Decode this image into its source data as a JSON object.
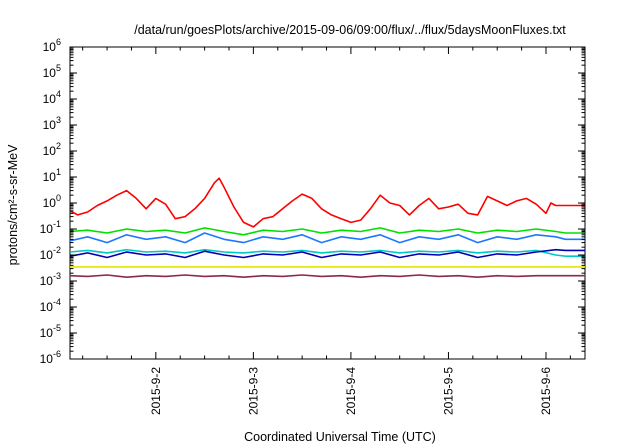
{
  "chart_data": {
    "type": "line",
    "title": "/data/run/goesPlots/archive/2015-09-06/09:00/flux/../flux/5daysMoonFluxes.txt",
    "xlabel": "Coordinated Universal Time (UTC)",
    "ylabel": "protons/cm²-s-sr-MeV",
    "yscale": "log",
    "ylim": [
      1e-06,
      1000000.0
    ],
    "xlim": [
      1.12,
      6.4
    ],
    "y_ticks": [
      {
        "value": -6,
        "label": "10",
        "exp": "-6"
      },
      {
        "value": -5,
        "label": "10",
        "exp": "-5"
      },
      {
        "value": -4,
        "label": "10",
        "exp": "-4"
      },
      {
        "value": -3,
        "label": "10",
        "exp": "-3"
      },
      {
        "value": -2,
        "label": "10",
        "exp": "-2"
      },
      {
        "value": -1,
        "label": "10",
        "exp": "-1"
      },
      {
        "value": 0,
        "label": "10",
        "exp": "0"
      },
      {
        "value": 1,
        "label": "10",
        "exp": "1"
      },
      {
        "value": 2,
        "label": "10",
        "exp": "2"
      },
      {
        "value": 3,
        "label": "10",
        "exp": "3"
      },
      {
        "value": 4,
        "label": "10",
        "exp": "4"
      },
      {
        "value": 5,
        "label": "10",
        "exp": "5"
      },
      {
        "value": 6,
        "label": "10",
        "exp": "6"
      }
    ],
    "x_ticks": [
      {
        "value": 2,
        "label": "2015-9-2"
      },
      {
        "value": 3,
        "label": "2015-9-3"
      },
      {
        "value": 4,
        "label": "2015-9-4"
      },
      {
        "value": 5,
        "label": "2015-9-5"
      },
      {
        "value": 6,
        "label": "2015-9-6"
      }
    ],
    "grid": false,
    "legend": "none",
    "series": [
      {
        "color": "#ff0000",
        "x": [
          1.12,
          1.2,
          1.3,
          1.4,
          1.5,
          1.6,
          1.7,
          1.8,
          1.9,
          2.0,
          2.1,
          2.2,
          2.3,
          2.4,
          2.5,
          2.6,
          2.65,
          2.7,
          2.8,
          2.9,
          3.0,
          3.1,
          3.2,
          3.3,
          3.4,
          3.5,
          3.6,
          3.7,
          3.8,
          3.9,
          4.0,
          4.1,
          4.2,
          4.3,
          4.4,
          4.5,
          4.6,
          4.7,
          4.8,
          4.9,
          5.0,
          5.1,
          5.2,
          5.3,
          5.4,
          5.5,
          5.6,
          5.7,
          5.8,
          5.9,
          6.0,
          6.05,
          6.1,
          6.2,
          6.4
        ],
        "y": [
          0.5,
          0.35,
          0.45,
          0.8,
          1.2,
          2.0,
          3.0,
          1.5,
          0.6,
          1.5,
          0.9,
          0.25,
          0.3,
          0.6,
          1.5,
          6.0,
          9.0,
          4.0,
          0.7,
          0.18,
          0.12,
          0.25,
          0.3,
          0.6,
          1.2,
          2.2,
          1.5,
          0.6,
          0.35,
          0.25,
          0.18,
          0.22,
          0.6,
          2.0,
          1.0,
          0.8,
          0.35,
          0.8,
          1.5,
          0.6,
          0.7,
          0.9,
          0.4,
          0.35,
          1.8,
          1.2,
          0.8,
          1.2,
          1.5,
          0.9,
          0.4,
          1.0,
          0.8,
          0.8,
          0.8
        ]
      },
      {
        "color": "#00e000",
        "x": [
          1.12,
          1.3,
          1.5,
          1.7,
          1.9,
          2.1,
          2.3,
          2.5,
          2.7,
          2.9,
          3.1,
          3.3,
          3.5,
          3.7,
          3.9,
          4.1,
          4.3,
          4.5,
          4.7,
          4.9,
          5.1,
          5.3,
          5.5,
          5.7,
          5.9,
          6.1,
          6.2,
          6.4
        ],
        "y": [
          0.08,
          0.09,
          0.07,
          0.1,
          0.08,
          0.09,
          0.07,
          0.11,
          0.08,
          0.06,
          0.09,
          0.08,
          0.1,
          0.07,
          0.09,
          0.08,
          0.11,
          0.07,
          0.09,
          0.08,
          0.1,
          0.07,
          0.09,
          0.08,
          0.1,
          0.08,
          0.07,
          0.07
        ]
      },
      {
        "color": "#1e78ff",
        "x": [
          1.12,
          1.3,
          1.5,
          1.7,
          1.9,
          2.1,
          2.3,
          2.5,
          2.7,
          2.9,
          3.1,
          3.3,
          3.5,
          3.7,
          3.9,
          4.1,
          4.3,
          4.5,
          4.7,
          4.9,
          5.1,
          5.3,
          5.5,
          5.7,
          5.9,
          6.1,
          6.2,
          6.4
        ],
        "y": [
          0.035,
          0.05,
          0.03,
          0.06,
          0.04,
          0.05,
          0.03,
          0.07,
          0.04,
          0.03,
          0.05,
          0.04,
          0.06,
          0.03,
          0.05,
          0.04,
          0.06,
          0.03,
          0.05,
          0.04,
          0.06,
          0.03,
          0.05,
          0.04,
          0.06,
          0.05,
          0.04,
          0.04
        ]
      },
      {
        "color": "#00c8c8",
        "x": [
          1.12,
          1.3,
          1.5,
          1.7,
          1.9,
          2.1,
          2.3,
          2.5,
          2.7,
          2.9,
          3.1,
          3.3,
          3.5,
          3.7,
          3.9,
          4.1,
          4.3,
          4.5,
          4.7,
          4.9,
          5.1,
          5.3,
          5.5,
          5.7,
          5.9,
          6.1,
          6.2,
          6.4
        ],
        "y": [
          0.013,
          0.015,
          0.012,
          0.016,
          0.013,
          0.014,
          0.012,
          0.016,
          0.013,
          0.012,
          0.014,
          0.013,
          0.015,
          0.012,
          0.014,
          0.013,
          0.015,
          0.012,
          0.014,
          0.013,
          0.015,
          0.012,
          0.014,
          0.013,
          0.015,
          0.01,
          0.009,
          0.009
        ]
      },
      {
        "color": "#0000b4",
        "x": [
          1.12,
          1.3,
          1.5,
          1.7,
          1.9,
          2.1,
          2.3,
          2.5,
          2.7,
          2.9,
          3.1,
          3.3,
          3.5,
          3.7,
          3.9,
          4.1,
          4.3,
          4.5,
          4.7,
          4.9,
          5.1,
          5.3,
          5.5,
          5.7,
          5.9,
          6.1,
          6.2,
          6.4
        ],
        "y": [
          0.009,
          0.012,
          0.008,
          0.013,
          0.01,
          0.011,
          0.008,
          0.014,
          0.01,
          0.008,
          0.011,
          0.01,
          0.013,
          0.008,
          0.011,
          0.01,
          0.013,
          0.008,
          0.011,
          0.01,
          0.013,
          0.008,
          0.011,
          0.01,
          0.013,
          0.016,
          0.015,
          0.015
        ]
      },
      {
        "color": "#e6e600",
        "x": [
          1.12,
          1.5,
          2.0,
          2.5,
          3.0,
          3.5,
          4.0,
          4.5,
          5.0,
          5.5,
          6.0,
          6.4
        ],
        "y": [
          0.0035,
          0.0035,
          0.0035,
          0.0035,
          0.0035,
          0.0035,
          0.0035,
          0.0035,
          0.0035,
          0.0035,
          0.0035,
          0.0035
        ]
      },
      {
        "color": "#8c2850",
        "x": [
          1.12,
          1.3,
          1.5,
          1.7,
          1.9,
          2.1,
          2.3,
          2.5,
          2.7,
          2.9,
          3.1,
          3.3,
          3.5,
          3.7,
          3.9,
          4.1,
          4.3,
          4.5,
          4.7,
          4.9,
          5.1,
          5.3,
          5.5,
          5.7,
          5.9,
          6.1,
          6.4
        ],
        "y": [
          0.0016,
          0.0015,
          0.0017,
          0.0014,
          0.0016,
          0.0015,
          0.0017,
          0.0015,
          0.0016,
          0.0014,
          0.0016,
          0.0015,
          0.0017,
          0.0015,
          0.0016,
          0.0014,
          0.0016,
          0.0015,
          0.0017,
          0.0015,
          0.0016,
          0.0014,
          0.0016,
          0.0015,
          0.0016,
          0.0016,
          0.0016
        ]
      }
    ]
  }
}
